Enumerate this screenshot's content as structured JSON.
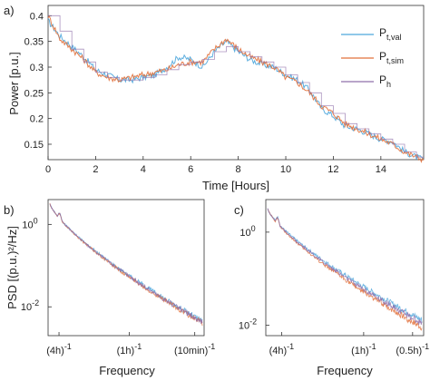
{
  "colors": {
    "val": "#4ea6dc",
    "sim": "#e2703a",
    "h": "#8f6faa",
    "axis": "#333333"
  },
  "chart_data": [
    {
      "panel": "a)",
      "type": "line",
      "xlabel": "Time [Hours]",
      "ylabel": "Power [p.u.]",
      "xlim": [
        0,
        15.8
      ],
      "ylim": [
        0.12,
        0.42
      ],
      "xticks": [
        "0",
        "2",
        "4",
        "6",
        "8",
        "10",
        "12",
        "14"
      ],
      "yticks": [
        "0.15",
        "0.2",
        "0.25",
        "0.3",
        "0.35",
        "0.4"
      ],
      "legend": {
        "placement": "top-right",
        "entries": [
          {
            "base": "P",
            "sub": "t,val",
            "color": "#4ea6dc"
          },
          {
            "base": "P",
            "sub": "t,sim",
            "color": "#e2703a"
          },
          {
            "base": "P",
            "sub": "h",
            "color": "#8f6faa"
          }
        ]
      },
      "x": [
        0,
        0.5,
        1,
        1.5,
        2,
        2.5,
        3,
        3.5,
        4,
        4.5,
        5,
        5.5,
        6,
        6.5,
        7,
        7.5,
        8,
        8.5,
        9,
        9.5,
        10,
        10.5,
        11,
        11.5,
        12,
        12.5,
        13,
        13.5,
        14,
        14.5,
        15,
        15.5,
        15.8
      ],
      "series": [
        {
          "name": "P_t,val",
          "values": [
            0.39,
            0.36,
            0.34,
            0.32,
            0.295,
            0.285,
            0.275,
            0.275,
            0.28,
            0.285,
            0.3,
            0.32,
            0.315,
            0.3,
            0.33,
            0.35,
            0.33,
            0.315,
            0.305,
            0.3,
            0.285,
            0.275,
            0.255,
            0.22,
            0.205,
            0.185,
            0.18,
            0.17,
            0.16,
            0.155,
            0.135,
            0.125,
            0.12
          ]
        },
        {
          "name": "P_t,sim",
          "values": [
            0.4,
            0.355,
            0.335,
            0.315,
            0.29,
            0.28,
            0.275,
            0.28,
            0.285,
            0.29,
            0.295,
            0.305,
            0.31,
            0.31,
            0.335,
            0.355,
            0.335,
            0.32,
            0.31,
            0.3,
            0.28,
            0.27,
            0.25,
            0.225,
            0.21,
            0.19,
            0.18,
            0.17,
            0.16,
            0.15,
            0.135,
            0.125,
            0.12
          ]
        },
        {
          "name": "P_h",
          "values": [
            0.4,
            0.37,
            0.335,
            0.31,
            0.29,
            0.28,
            0.275,
            0.275,
            0.28,
            0.285,
            0.295,
            0.305,
            0.31,
            0.315,
            0.33,
            0.34,
            0.33,
            0.32,
            0.31,
            0.3,
            0.285,
            0.27,
            0.25,
            0.225,
            0.21,
            0.19,
            0.18,
            0.17,
            0.16,
            0.15,
            0.135,
            0.125,
            0.12
          ]
        }
      ]
    },
    {
      "panel": "b)",
      "type": "line",
      "xlabel": "Frequency",
      "ylabel": "PSD [(p.u.)²/Hz]",
      "yscale": "log",
      "ylim": [
        0.002,
        4
      ],
      "xtick_labels": [
        {
          "base": "(4h)",
          "sup": "-1"
        },
        {
          "base": "(1h)",
          "sup": "-1"
        },
        {
          "base": "(10min)",
          "sup": "-1"
        }
      ],
      "ytick_labels": [
        {
          "base": "10",
          "sup": "0"
        },
        {
          "base": "10",
          "sup": "-2"
        }
      ],
      "series": [
        {
          "name": "P_t,val",
          "end": 0.0045
        },
        {
          "name": "P_t,sim",
          "end": 0.004
        },
        {
          "name": "P_h",
          "end": 0.0042
        }
      ]
    },
    {
      "panel": "c)",
      "type": "line",
      "xlabel": "Frequency",
      "ylabel": "",
      "yscale": "log",
      "ylim": [
        0.006,
        5
      ],
      "xtick_labels": [
        {
          "base": "(4h)",
          "sup": "-1"
        },
        {
          "base": "(1h)",
          "sup": "-1"
        },
        {
          "base": "(0.5h)",
          "sup": "-1"
        }
      ],
      "ytick_labels": [
        {
          "base": "10",
          "sup": "0"
        },
        {
          "base": "10",
          "sup": "-2"
        }
      ],
      "series": [
        {
          "name": "P_t,val",
          "end": 0.013
        },
        {
          "name": "P_t,sim",
          "end": 0.009
        },
        {
          "name": "P_h",
          "end": 0.011
        }
      ]
    }
  ]
}
